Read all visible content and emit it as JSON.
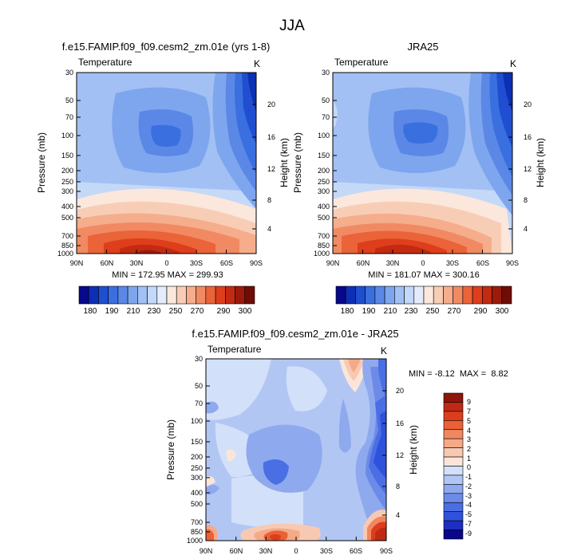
{
  "figure_title": "JJA",
  "colors": {
    "temperature_palette": [
      "#08088a",
      "#0c2fb4",
      "#1f4fd0",
      "#3a6fe0",
      "#5b88e6",
      "#7ea6ee",
      "#a2c0f3",
      "#c4d8f8",
      "#e4ecfb",
      "#fbe7dc",
      "#f8cdb6",
      "#f5ad8c",
      "#f18a62",
      "#eb6338",
      "#de3e1c",
      "#c22a12",
      "#9c1a0c",
      "#6e0c06"
    ],
    "difference_palette": [
      "#08088a",
      "#1d2fc0",
      "#2f52dc",
      "#4a6ee4",
      "#6c8be8",
      "#8fa9ee",
      "#b2c6f4",
      "#d3e0f9",
      "#fbe5da",
      "#f8c9b2",
      "#f5a987",
      "#f1875e",
      "#ea6136",
      "#dd3d1c",
      "#c02a14",
      "#8e1509"
    ]
  },
  "chart_data": [
    {
      "type": "heatmap",
      "title": "f.e15.FAMIP.f09_f09.cesm2_zm.01e (yrs 1-8)",
      "variable_label": "Temperature",
      "units_label": "K",
      "xlabel": "",
      "ylabel": "Pressure (mb)",
      "ylabel_right": "Height (km)",
      "x_ticks": [
        "90N",
        "60N",
        "30N",
        "0",
        "30S",
        "60S",
        "90S"
      ],
      "y_ticks": [
        "30",
        "50",
        "70",
        "100",
        "150",
        "200",
        "250",
        "300",
        "400",
        "500",
        "700",
        "850",
        "1000"
      ],
      "y_ticks_right": [
        "20",
        "16",
        "12",
        "8",
        "4"
      ],
      "min_max_text": "MIN = 172.95  MAX = 299.93",
      "colorbar_labels": [
        "180",
        "190",
        "210",
        "230",
        "250",
        "270",
        "290",
        "300"
      ],
      "colorbar_levels": [
        175,
        180,
        185,
        190,
        200,
        210,
        220,
        230,
        240,
        250,
        260,
        270,
        280,
        285,
        290,
        295,
        300
      ],
      "value_range": [
        172.95,
        299.93
      ]
    },
    {
      "type": "heatmap",
      "title": "JRA25",
      "variable_label": "Temperature",
      "units_label": "K",
      "xlabel": "",
      "ylabel": "Pressure (mb)",
      "ylabel_right": "Height (km)",
      "x_ticks": [
        "90N",
        "60N",
        "30N",
        "0",
        "30S",
        "60S",
        "90S"
      ],
      "y_ticks": [
        "30",
        "50",
        "70",
        "100",
        "150",
        "200",
        "250",
        "300",
        "400",
        "500",
        "700",
        "850",
        "1000"
      ],
      "y_ticks_right": [
        "20",
        "16",
        "12",
        "8",
        "4"
      ],
      "min_max_text": "MIN = 181.07  MAX = 300.16",
      "colorbar_labels": [
        "180",
        "190",
        "210",
        "230",
        "250",
        "270",
        "290",
        "300"
      ],
      "colorbar_levels": [
        175,
        180,
        185,
        190,
        200,
        210,
        220,
        230,
        240,
        250,
        260,
        270,
        280,
        285,
        290,
        295,
        300
      ],
      "value_range": [
        181.07,
        300.16
      ]
    },
    {
      "type": "heatmap",
      "title": "f.e15.FAMIP.f09_f09.cesm2_zm.01e - JRA25",
      "variable_label": "Temperature",
      "units_label": "K",
      "xlabel": "",
      "ylabel": "Pressure (mb)",
      "ylabel_right": "Height (km)",
      "x_ticks": [
        "90N",
        "60N",
        "30N",
        "0",
        "30S",
        "60S",
        "90S"
      ],
      "y_ticks": [
        "30",
        "50",
        "70",
        "100",
        "150",
        "200",
        "250",
        "300",
        "400",
        "500",
        "700",
        "850",
        "1000"
      ],
      "y_ticks_right": [
        "20",
        "16",
        "12",
        "8",
        "4"
      ],
      "min_max_text": "MIN = -8.12  MAX =  8.82",
      "colorbar_labels": [
        "9",
        "7",
        "5",
        "4",
        "3",
        "2",
        "1",
        "0",
        "-1",
        "-2",
        "-3",
        "-4",
        "-5",
        "-7",
        "-9"
      ],
      "value_range": [
        -8.12,
        8.82
      ]
    }
  ]
}
